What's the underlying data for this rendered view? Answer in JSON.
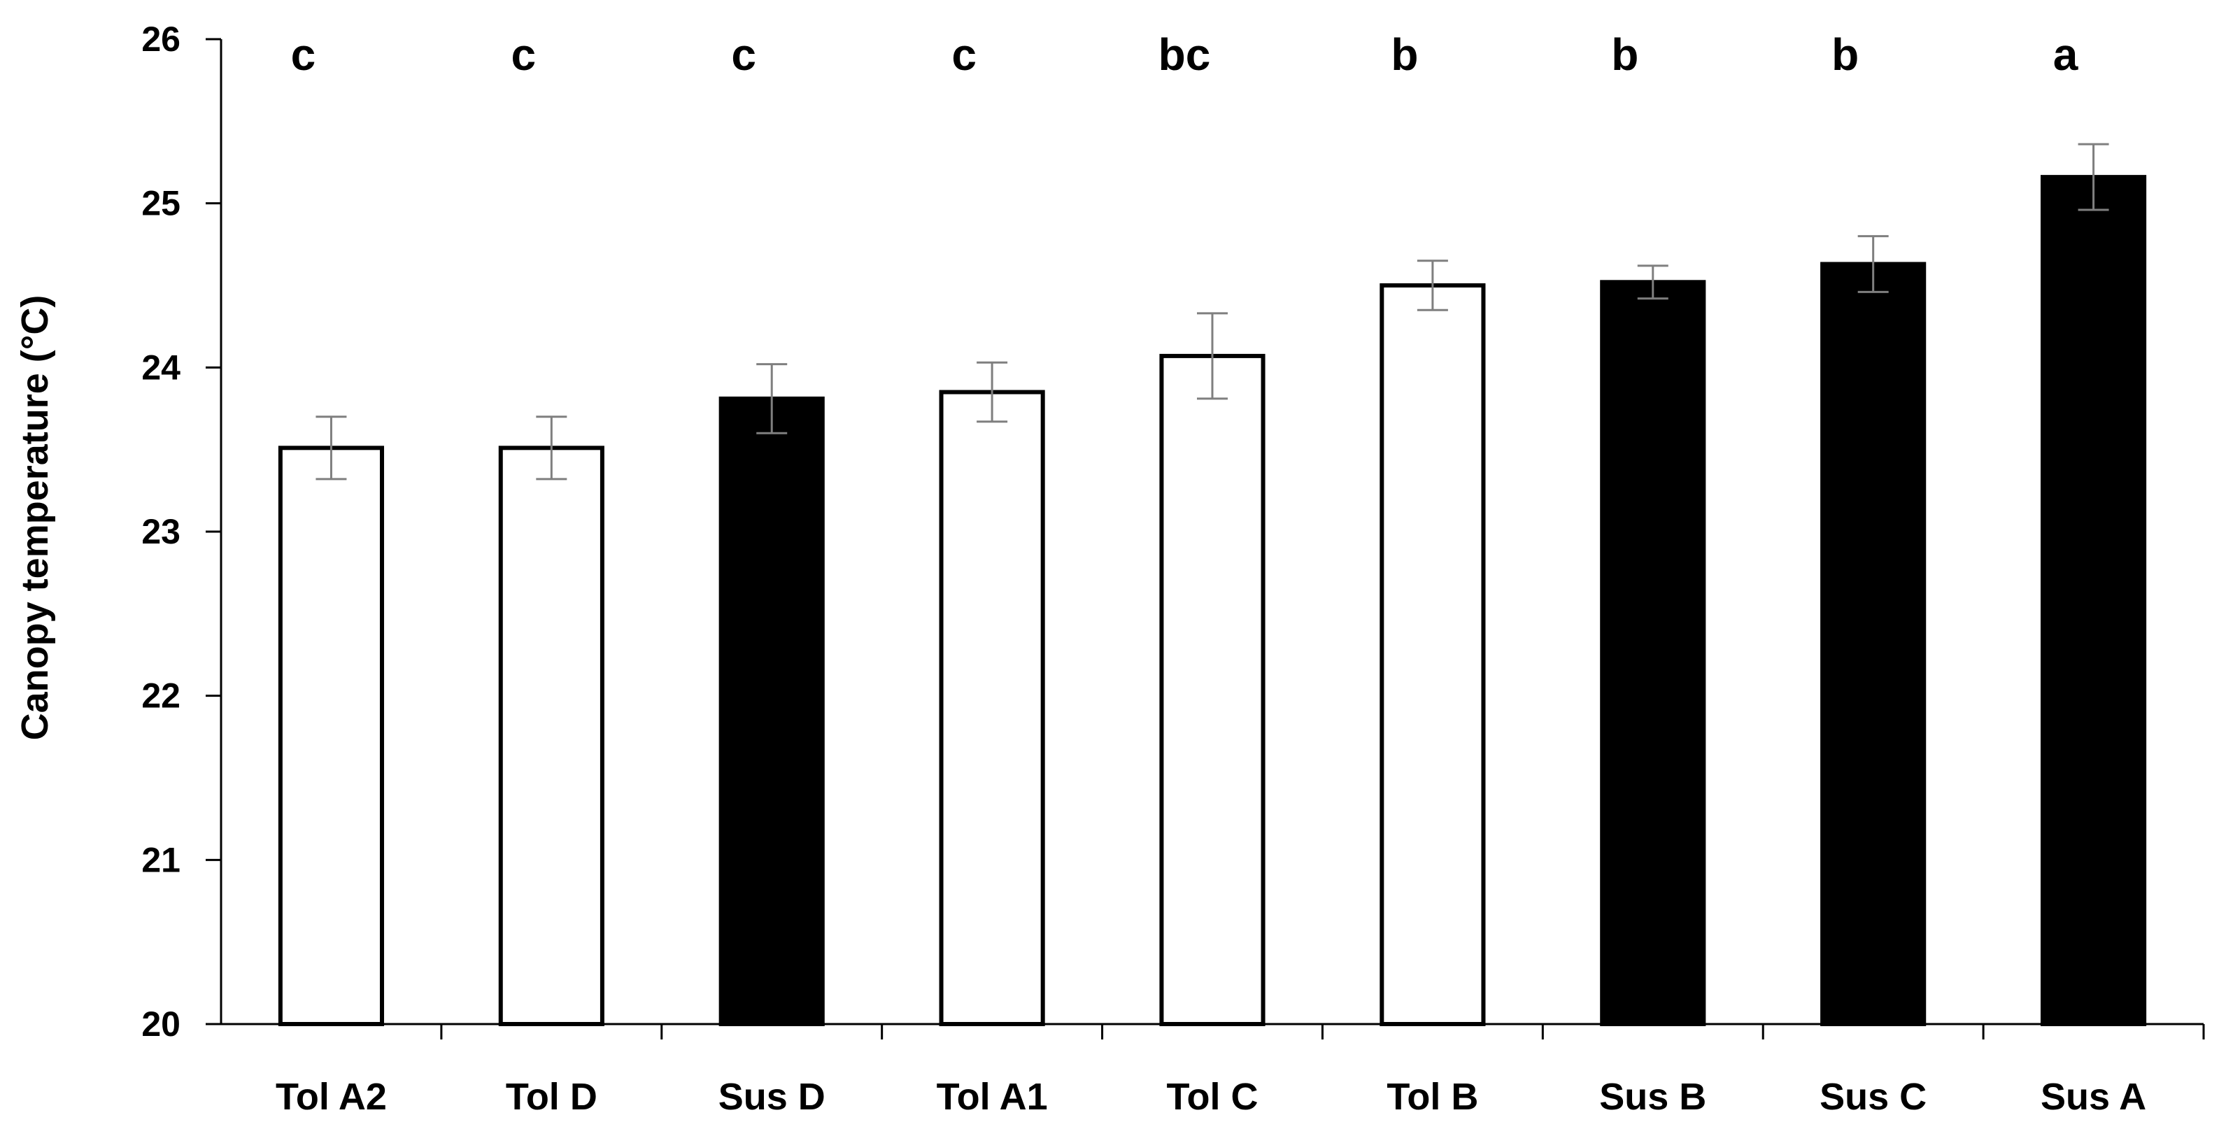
{
  "chart_data": {
    "type": "bar",
    "title": "",
    "xlabel": "",
    "ylabel": "Canopy temperature (°C)",
    "ylim": [
      20,
      26
    ],
    "yticks": [
      "20",
      "21",
      "22",
      "23",
      "24",
      "25",
      "26"
    ],
    "grid": false,
    "categories": [
      "Tol A2",
      "Tol D",
      "Sus D",
      "Tol A1",
      "Tol C",
      "Tol B",
      "Sus B",
      "Sus C",
      "Sus A"
    ],
    "values": [
      23.51,
      23.51,
      23.81,
      23.85,
      24.07,
      24.5,
      24.52,
      24.63,
      25.16
    ],
    "errors": [
      0.19,
      0.19,
      0.21,
      0.18,
      0.26,
      0.15,
      0.1,
      0.17,
      0.2
    ],
    "letters": [
      "c",
      "c",
      "c",
      "c",
      "bc",
      "b",
      "b",
      "b",
      "a"
    ],
    "groups": [
      "Tolerant",
      "Tolerant",
      "Susceptible",
      "Tolerant",
      "Tolerant",
      "Tolerant",
      "Susceptible",
      "Susceptible",
      "Susceptible"
    ],
    "colors": {
      "Tolerant": "#ffffff",
      "Susceptible": "#000000",
      "bar_edge": "#000000",
      "error_bar": "#7f7f7f",
      "axis": "#000000"
    }
  }
}
